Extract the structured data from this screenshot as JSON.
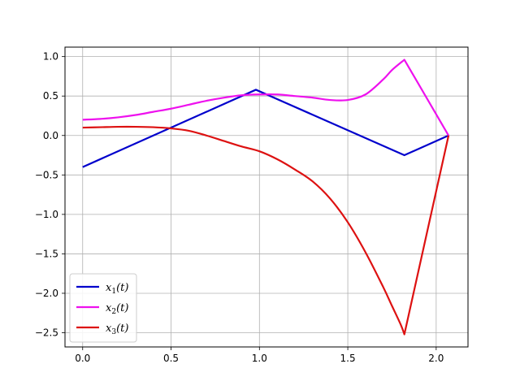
{
  "chart_data": {
    "type": "line",
    "title": "",
    "xlabel": "",
    "ylabel": "",
    "xlim": [
      -0.1,
      2.18
    ],
    "ylim": [
      -2.68,
      1.12
    ],
    "xticks": [
      0.0,
      0.5,
      1.0,
      1.5,
      2.0
    ],
    "xtick_labels": [
      "0.0",
      "0.5",
      "1.0",
      "1.5",
      "2.0"
    ],
    "yticks": [
      1.0,
      0.5,
      0.0,
      -0.5,
      -1.0,
      -1.5,
      -2.0,
      -2.5
    ],
    "ytick_labels": [
      "1.0",
      "0.5",
      "0.0",
      "−0.5",
      "−1.0",
      "−1.5",
      "−2.0",
      "−2.5"
    ],
    "grid": true,
    "legend_position": "lower-left",
    "series": [
      {
        "name": "x₁(t)",
        "base": "x",
        "sub": "1",
        "suffix": "(t)",
        "color": "#0000cc",
        "x": [
          0.0,
          0.98,
          1.82,
          2.07
        ],
        "y": [
          -0.4,
          0.58,
          -0.25,
          0.0
        ]
      },
      {
        "name": "x₂(t)",
        "base": "x",
        "sub": "2",
        "suffix": "(t)",
        "color": "#ee11ee",
        "x": [
          0.0,
          0.1,
          0.2,
          0.3,
          0.4,
          0.5,
          0.6,
          0.7,
          0.8,
          0.9,
          1.0,
          1.1,
          1.2,
          1.3,
          1.4,
          1.5,
          1.6,
          1.7,
          1.75,
          1.82,
          2.07
        ],
        "y": [
          0.2,
          0.21,
          0.23,
          0.26,
          0.3,
          0.34,
          0.39,
          0.44,
          0.48,
          0.51,
          0.52,
          0.52,
          0.5,
          0.48,
          0.45,
          0.45,
          0.52,
          0.71,
          0.83,
          0.96,
          0.0
        ]
      },
      {
        "name": "x₃(t)",
        "base": "x",
        "sub": "3",
        "suffix": "(t)",
        "color": "#dd1111",
        "x": [
          0.0,
          0.1,
          0.2,
          0.3,
          0.4,
          0.5,
          0.6,
          0.7,
          0.8,
          0.9,
          1.0,
          1.1,
          1.2,
          1.3,
          1.4,
          1.5,
          1.6,
          1.7,
          1.75,
          1.8,
          1.82,
          2.07
        ],
        "y": [
          0.1,
          0.105,
          0.11,
          0.11,
          0.105,
          0.09,
          0.06,
          0.0,
          -0.07,
          -0.14,
          -0.2,
          -0.3,
          -0.43,
          -0.58,
          -0.8,
          -1.1,
          -1.48,
          -1.92,
          -2.16,
          -2.4,
          -2.52,
          0.0
        ]
      }
    ]
  }
}
